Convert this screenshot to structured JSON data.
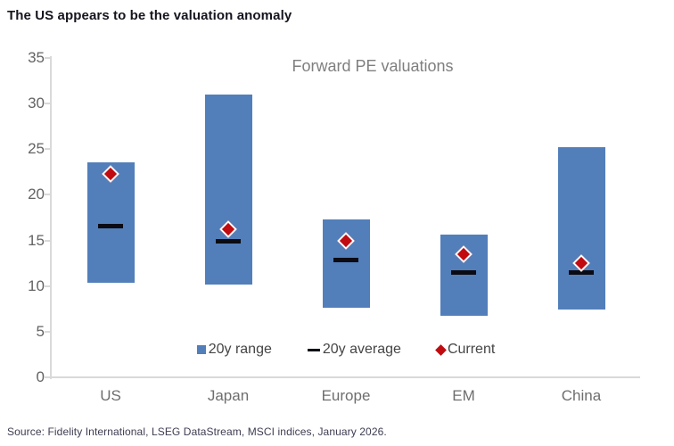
{
  "page": {
    "title": "The US appears to be the valuation anomaly",
    "source": "Source: Fidelity International, LSEG DataStream, MSCI indices, January 2026."
  },
  "chart_data": {
    "type": "bar",
    "subtype": "floating-range-bars-with-average-dash-and-current-diamond",
    "title": "Forward PE valuations",
    "categories": [
      "US",
      "Japan",
      "Europe",
      "EM",
      "China"
    ],
    "series": [
      {
        "name": "20y range",
        "marker": "bar-range",
        "low": [
          10.4,
          10.2,
          7.6,
          6.7,
          7.4
        ],
        "high": [
          23.6,
          31.0,
          17.3,
          15.6,
          25.2
        ],
        "color": "#527fba"
      },
      {
        "name": "20y average",
        "marker": "dash",
        "values": [
          16.6,
          14.9,
          12.9,
          11.5,
          11.5
        ],
        "color": "#0b0b14"
      },
      {
        "name": "Current",
        "marker": "diamond",
        "values": [
          22.3,
          16.2,
          15.0,
          13.5,
          12.5
        ],
        "color": "#c00b10"
      }
    ],
    "ylim": [
      0,
      35
    ],
    "ytick_step": 5,
    "yticks": [
      0,
      5,
      10,
      15,
      20,
      25,
      30,
      35
    ],
    "grid": false,
    "legend_position": "bottom-inside",
    "axis_line_color": "#d9d9d9"
  },
  "colors": {
    "bar_blue": "#527fba",
    "current_red": "#c00b10",
    "average_black": "#0b0b14",
    "heading_text": "#15151f",
    "axis_text": "#636363",
    "chart_title_text": "#7f7f7f",
    "source_text": "#3d3d52",
    "axis_line": "#d9d9d9"
  }
}
